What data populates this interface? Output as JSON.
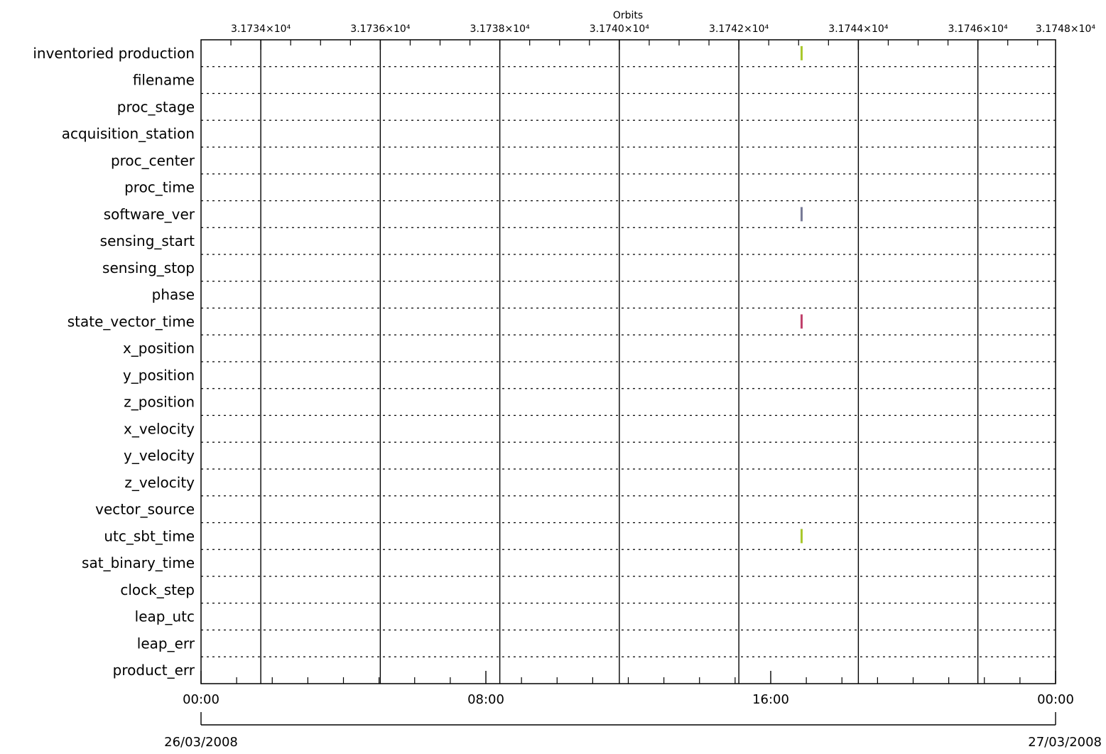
{
  "chart_data": {
    "type": "timeline",
    "title": "Orbits",
    "x_top": {
      "label": "Orbits",
      "range": [
        31733.0,
        31747.3
      ],
      "ticks": [
        31734,
        31736,
        31738,
        31740,
        31742,
        31744,
        31746,
        31748
      ],
      "tick_labels": [
        "3.1734×10⁴",
        "3.1736×10⁴",
        "3.1738×10⁴",
        "3.1740×10⁴",
        "3.1742×10⁴",
        "3.1744×10⁴",
        "3.1746×10⁴",
        "3.1748×10⁴"
      ]
    },
    "x_bottom": {
      "range_hours": [
        0,
        24
      ],
      "ticks_hours": [
        0,
        8,
        16,
        24
      ],
      "tick_labels": [
        "00:00",
        "08:00",
        "16:00",
        "00:00"
      ],
      "start_date": "26/03/2008",
      "end_date": "27/03/2008"
    },
    "rows": [
      "inventoried production",
      "filename",
      "proc_stage",
      "acquisition_station",
      "proc_center",
      "proc_time",
      "software_ver",
      "sensing_start",
      "sensing_stop",
      "phase",
      "state_vector_time",
      "x_position",
      "y_position",
      "z_position",
      "x_velocity",
      "y_velocity",
      "z_velocity",
      "vector_source",
      "utc_sbt_time",
      "sat_binary_time",
      "clock_step",
      "leap_utc",
      "leap_err",
      "product_err"
    ],
    "marks": [
      {
        "row": "inventoried production",
        "orbit": 31743.05,
        "color": "#a9c82c"
      },
      {
        "row": "software_ver",
        "orbit": 31743.05,
        "color": "#777a96"
      },
      {
        "row": "state_vector_time",
        "orbit": 31743.05,
        "color": "#c0406a"
      },
      {
        "row": "utc_sbt_time",
        "orbit": 31743.05,
        "color": "#a9c82c"
      }
    ],
    "grid": true
  }
}
